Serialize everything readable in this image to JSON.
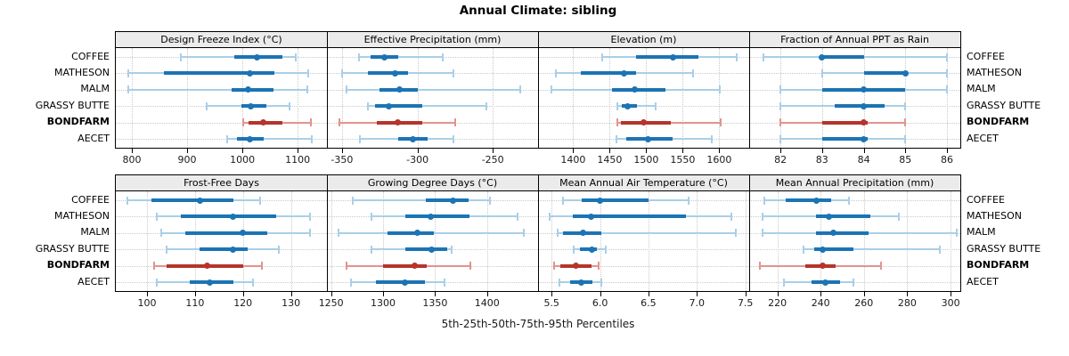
{
  "title": "Annual Climate: sibling",
  "caption": "5th-25th-50th-75th-95th Percentiles",
  "sites": [
    "COFFEE",
    "MATHESON",
    "MALM",
    "GRASSY BUTTE",
    "BONDFARM",
    "AECET"
  ],
  "highlight_site": "BONDFARM",
  "percentile_levels": [
    5,
    25,
    50,
    75,
    95
  ],
  "colors": {
    "series_blue": "#1b74b4",
    "series_blue_light": "#a9cfe7",
    "highlight_red": "#b5342c",
    "highlight_red_light": "#e3938f",
    "strip_bg": "#ebebeb",
    "grid": "#c9c9c9",
    "border": "#000000"
  },
  "chart_data": {
    "type": "dotplot-intervals",
    "layout": {
      "rows": 2,
      "cols": 4
    },
    "note": "each series lists [p5,p25,p50,p75,p95]",
    "panels": [
      {
        "title": "Design Freeze Index (°C)",
        "xlim": [
          771,
          1153
        ],
        "tick_values": [
          800,
          900,
          1000,
          1100
        ],
        "tick_labels": [
          "800",
          "900",
          "1000",
          "1100"
        ],
        "series": [
          {
            "site": "COFFEE",
            "values": [
              888,
              985,
              1026,
              1072,
              1096
            ]
          },
          {
            "site": "MATHESON",
            "values": [
              794,
              858,
              1014,
              1058,
              1119
            ]
          },
          {
            "site": "MALM",
            "values": [
              793,
              980,
              1011,
              1056,
              1117
            ]
          },
          {
            "site": "GRASSY BUTTE",
            "values": [
              936,
              998,
              1015,
              1043,
              1086
            ]
          },
          {
            "site": "BONDFARM",
            "values": [
              1002,
              1011,
              1037,
              1072,
              1124
            ]
          },
          {
            "site": "AECET",
            "values": [
              972,
              990,
              1013,
              1038,
              1126
            ]
          }
        ]
      },
      {
        "title": "Effective Precipitation (mm)",
        "xlim": [
          -360,
          -220
        ],
        "tick_values": [
          -350,
          -300,
          -250
        ],
        "tick_labels": [
          "-350",
          "-300",
          "-250"
        ],
        "series": [
          {
            "site": "COFFEE",
            "values": [
              -339,
              -331,
              -322,
              -313,
              -283
            ]
          },
          {
            "site": "MATHESON",
            "values": [
              -350,
              -333,
              -315,
              -306,
              -276
            ]
          },
          {
            "site": "MALM",
            "values": [
              -347,
              -325,
              -312,
              -300,
              -232
            ]
          },
          {
            "site": "GRASSY BUTTE",
            "values": [
              -333,
              -328,
              -319,
              -297,
              -254
            ]
          },
          {
            "site": "BONDFARM",
            "values": [
              -352,
              -327,
              -313,
              -297,
              -275
            ]
          },
          {
            "site": "AECET",
            "values": [
              -338,
              -313,
              -303,
              -293,
              -276
            ]
          }
        ]
      },
      {
        "title": "Elevation (m)",
        "xlim": [
          1352,
          1641
        ],
        "tick_values": [
          1400,
          1450,
          1500,
          1550,
          1600
        ],
        "tick_labels": [
          "1400",
          "1450",
          "1500",
          "1550",
          "1600"
        ],
        "series": [
          {
            "site": "COFFEE",
            "values": [
              1440,
              1486,
              1537,
              1571,
              1624
            ]
          },
          {
            "site": "MATHESON",
            "values": [
              1376,
              1410,
              1470,
              1486,
              1564
            ]
          },
          {
            "site": "MALM",
            "values": [
              1370,
              1453,
              1484,
              1526,
              1601
            ]
          },
          {
            "site": "GRASSY BUTTE",
            "values": [
              1460,
              1467,
              1474,
              1487,
              1513
            ]
          },
          {
            "site": "BONDFARM",
            "values": [
              1461,
              1466,
              1496,
              1534,
              1602
            ]
          },
          {
            "site": "AECET",
            "values": [
              1459,
              1473,
              1502,
              1536,
              1590
            ]
          }
        ]
      },
      {
        "title": "Fraction of Annual PPT as Rain",
        "xlim": [
          81.25,
          86.32
        ],
        "tick_values": [
          82,
          83,
          84,
          85,
          86
        ],
        "tick_labels": [
          "82",
          "83",
          "84",
          "85",
          "86"
        ],
        "series": [
          {
            "site": "COFFEE",
            "values": [
              81.6,
              83,
              83,
              84,
              86
            ]
          },
          {
            "site": "MATHESON",
            "values": [
              83,
              84,
              85,
              85,
              86
            ]
          },
          {
            "site": "MALM",
            "values": [
              82,
              83,
              84,
              85,
              86
            ]
          },
          {
            "site": "GRASSY BUTTE",
            "values": [
              82,
              83.3,
              84,
              84.5,
              85
            ]
          },
          {
            "site": "BONDFARM",
            "values": [
              82,
              83,
              84,
              84.1,
              85
            ]
          },
          {
            "site": "AECET",
            "values": [
              82,
              83,
              84,
              84.1,
              85
            ]
          }
        ]
      },
      {
        "title": "Frost-Free Days",
        "xlim": [
          93.5,
          137.5
        ],
        "tick_values": [
          100,
          110,
          120,
          130
        ],
        "tick_labels": [
          "100",
          "110",
          "120",
          "130"
        ],
        "series": [
          {
            "site": "COFFEE",
            "values": [
              96,
              101,
              111,
              118,
              123.5
            ]
          },
          {
            "site": "MATHESON",
            "values": [
              102,
              107,
              118,
              127,
              134
            ]
          },
          {
            "site": "MALM",
            "values": [
              103,
              108,
              120,
              125,
              134
            ]
          },
          {
            "site": "GRASSY BUTTE",
            "values": [
              104,
              111,
              118,
              121,
              127.5
            ]
          },
          {
            "site": "BONDFARM",
            "values": [
              101.5,
              104,
              112.5,
              120,
              124
            ]
          },
          {
            "site": "AECET",
            "values": [
              102,
              109,
              113,
              118,
              122
            ]
          }
        ]
      },
      {
        "title": "Growing Degree Days (°C)",
        "xlim": [
          1246,
          1449
        ],
        "tick_values": [
          1250,
          1300,
          1350,
          1400
        ],
        "tick_labels": [
          "1250",
          "1300",
          "1350",
          "1400"
        ],
        "series": [
          {
            "site": "COFFEE",
            "values": [
              1271,
              1341,
              1367,
              1382,
              1403
            ]
          },
          {
            "site": "MATHESON",
            "values": [
              1289,
              1321,
              1346,
              1383,
              1429
            ]
          },
          {
            "site": "MALM",
            "values": [
              1257,
              1304,
              1333,
              1349,
              1435
            ]
          },
          {
            "site": "GRASSY BUTTE",
            "values": [
              1289,
              1321,
              1347,
              1362,
              1366
            ]
          },
          {
            "site": "BONDFARM",
            "values": [
              1265,
              1300,
              1330,
              1342,
              1384
            ]
          },
          {
            "site": "AECET",
            "values": [
              1269,
              1293,
              1321,
              1340,
              1359
            ]
          }
        ]
      },
      {
        "title": "Mean Annual Air Temperature (°C)",
        "xlim": [
          5.36,
          7.54
        ],
        "tick_values": [
          5.5,
          6.0,
          6.5,
          7.0,
          7.5
        ],
        "tick_labels": [
          "5.5",
          "6.0",
          "6.5",
          "7.0",
          "7.5"
        ],
        "series": [
          {
            "site": "COFFEE",
            "values": [
              5.62,
              5.81,
              6.0,
              6.5,
              6.91
            ]
          },
          {
            "site": "MATHESON",
            "values": [
              5.48,
              5.72,
              5.91,
              6.89,
              7.36
            ]
          },
          {
            "site": "MALM",
            "values": [
              5.56,
              5.62,
              5.82,
              6.01,
              7.4
            ]
          },
          {
            "site": "GRASSY BUTTE",
            "values": [
              5.73,
              5.79,
              5.92,
              5.97,
              6.06
            ]
          },
          {
            "site": "BONDFARM",
            "values": [
              5.53,
              5.59,
              5.75,
              5.91,
              5.99
            ]
          },
          {
            "site": "AECET",
            "values": [
              5.58,
              5.69,
              5.81,
              5.92,
              6.01
            ]
          }
        ]
      },
      {
        "title": "Mean Annual Precipitation (mm)",
        "xlim": [
          207,
          304.5
        ],
        "tick_values": [
          220,
          240,
          260,
          280,
          300
        ],
        "tick_labels": [
          "220",
          "240",
          "260",
          "280",
          "300"
        ],
        "series": [
          {
            "site": "COFFEE",
            "values": [
              214,
              224,
              238,
              245,
              253
            ]
          },
          {
            "site": "MATHESON",
            "values": [
              213,
              238,
              244,
              263,
              276
            ]
          },
          {
            "site": "MALM",
            "values": [
              213,
              238,
              246,
              262,
              303
            ]
          },
          {
            "site": "GRASSY BUTTE",
            "values": [
              232,
              237,
              241,
              255,
              295
            ]
          },
          {
            "site": "BONDFARM",
            "values": [
              212,
              233,
              241,
              247,
              268
            ]
          },
          {
            "site": "AECET",
            "values": [
              223,
              236,
              242,
              249,
              255
            ]
          }
        ]
      }
    ]
  }
}
